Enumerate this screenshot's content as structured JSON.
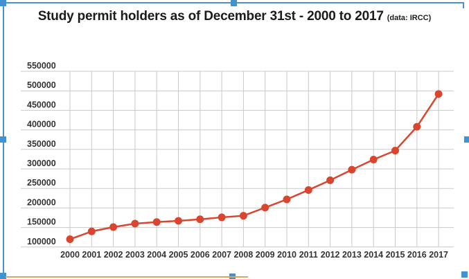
{
  "title": {
    "text": "Study permit holders as of December 31st - 2000 to 2017",
    "suffix": "(data: IRCC)"
  },
  "chart_data": {
    "type": "line",
    "title": "Study permit holders as of December 31st - 2000 to 2017",
    "source_note": "(data: IRCC)",
    "xlabel": "",
    "ylabel": "",
    "x": [
      "2000",
      "2001",
      "2002",
      "2003",
      "2004",
      "2005",
      "2006",
      "2007",
      "2008",
      "2009",
      "2010",
      "2011",
      "2012",
      "2013",
      "2014",
      "2015",
      "2016",
      "2017"
    ],
    "series": [
      {
        "name": "Study permit holders",
        "values": [
          120000,
          140000,
          151000,
          160000,
          164000,
          167000,
          171000,
          176000,
          180000,
          201000,
          222000,
          246000,
          271000,
          298000,
          324000,
          347000,
          408000,
          492000
        ]
      }
    ],
    "ylim": [
      100000,
      550000
    ],
    "ytick_step": 50000,
    "yticks": [
      550000,
      500000,
      450000,
      400000,
      350000,
      300000,
      250000,
      200000,
      150000,
      100000
    ],
    "grid": true,
    "legend": "none",
    "line_color": "#d9452e",
    "marker": "circle",
    "grid_color": "#c9c9c9",
    "tick_color": "#333333"
  },
  "selection": {
    "border_color": "#4a8fd9",
    "handle_color": "#4291d0",
    "drop_line_color": "#d7a566"
  }
}
